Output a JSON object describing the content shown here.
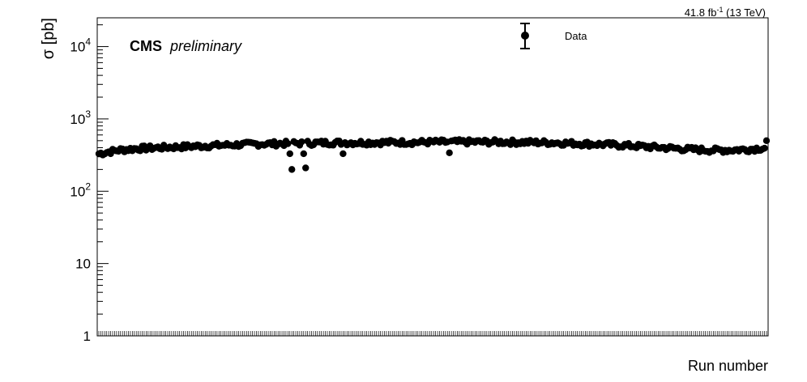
{
  "header": {
    "lumi_prefix": "41.8 fb",
    "lumi_sup": "-1",
    "lumi_suffix": " (13 TeV)"
  },
  "labels": {
    "experiment": "CMS",
    "status": "preliminary"
  },
  "chart_data": {
    "type": "scatter",
    "title": "",
    "xlabel": "Run number",
    "ylabel": "σ [pb]",
    "ylog": true,
    "ylim": [
      1,
      25000
    ],
    "yticks": [
      {
        "value": 1,
        "base": "1",
        "exp": ""
      },
      {
        "value": 10,
        "base": "10",
        "exp": ""
      },
      {
        "value": 100,
        "base": "10",
        "exp": "2"
      },
      {
        "value": 1000,
        "base": "10",
        "exp": "3"
      },
      {
        "value": 10000,
        "base": "10",
        "exp": "4"
      }
    ],
    "x_tick_labels_legible": false,
    "n_points": 340,
    "legend": {
      "position": "top-right",
      "entries": [
        {
          "name": "Data",
          "marker": "circle",
          "error_bar": true
        }
      ]
    },
    "series": [
      {
        "name": "Data",
        "color": "#000000",
        "trend": [
          [
            0,
            330
          ],
          [
            10,
            370
          ],
          [
            20,
            390
          ],
          [
            30,
            400
          ],
          [
            40,
            410
          ],
          [
            50,
            420
          ],
          [
            60,
            430
          ],
          [
            70,
            440
          ],
          [
            80,
            450
          ],
          [
            90,
            455
          ],
          [
            100,
            460
          ],
          [
            110,
            465
          ],
          [
            120,
            470
          ],
          [
            130,
            470
          ],
          [
            140,
            472
          ],
          [
            150,
            475
          ],
          [
            160,
            475
          ],
          [
            170,
            478
          ],
          [
            180,
            480
          ],
          [
            190,
            480
          ],
          [
            200,
            480
          ],
          [
            210,
            478
          ],
          [
            220,
            475
          ],
          [
            230,
            470
          ],
          [
            240,
            460
          ],
          [
            250,
            450
          ],
          [
            260,
            440
          ],
          [
            270,
            425
          ],
          [
            280,
            410
          ],
          [
            290,
            395
          ],
          [
            300,
            380
          ],
          [
            310,
            370
          ],
          [
            320,
            370
          ],
          [
            330,
            380
          ],
          [
            339,
            400
          ]
        ],
        "outliers": [
          [
            97,
            330
          ],
          [
            98,
            200
          ],
          [
            104,
            330
          ],
          [
            105,
            210
          ],
          [
            124,
            330
          ],
          [
            178,
            340
          ],
          [
            339,
            500
          ]
        ]
      }
    ]
  },
  "colors": {
    "axis": "#000000",
    "marker": "#000000",
    "background": "#ffffff"
  }
}
